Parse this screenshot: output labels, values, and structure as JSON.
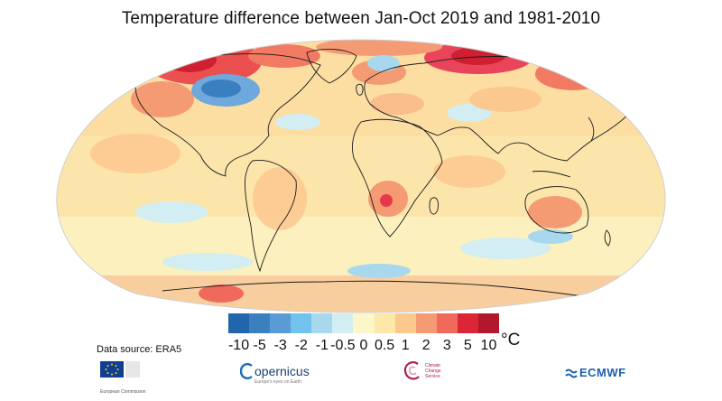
{
  "title": "Temperature difference between Jan-Oct 2019 and 1981-2010",
  "legend": {
    "labels": [
      "-10",
      "-5",
      "-3",
      "-2",
      "-1",
      "-0.5",
      "0",
      "0.5",
      "1",
      "2",
      "3",
      "5",
      "10"
    ],
    "colors": [
      "#2166ac",
      "#3a7fc0",
      "#5b9bd5",
      "#6fc3ec",
      "#a8d8ee",
      "#d2eef2",
      "#fbf7c8",
      "#fde7a9",
      "#fbc88e",
      "#f49b74",
      "#ef6a5b",
      "#dc2638",
      "#b2182b"
    ],
    "unit": "°C"
  },
  "source": "Data source: ERA5",
  "logos": {
    "eu": "European Commission",
    "copernicus": "opernicus",
    "copernicus_sub": "Europe's eyes on Earth",
    "c3s": "Climate Change Service",
    "ecmwf": "ECMWF"
  },
  "colors": {
    "ocean_base": "#fbeeb3",
    "coastline": "#1a1a1a"
  }
}
